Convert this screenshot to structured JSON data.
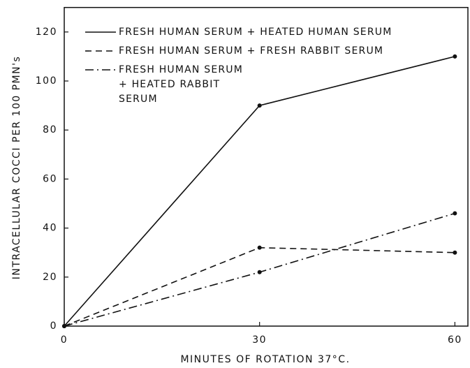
{
  "chart_data": {
    "type": "line",
    "x_label": "MINUTES OF ROTATION 37°C.",
    "y_label": "INTRACELLULAR COCCI PER 100 PMN's",
    "x": [
      0,
      30,
      60
    ],
    "series": [
      {
        "name": "FRESH HUMAN SERUM + HEATED HUMAN SERUM",
        "color": "#111111",
        "style": "solid",
        "values": [
          0,
          90,
          110
        ]
      },
      {
        "name": "FRESH HUMAN SERUM + FRESH RABBIT SERUM",
        "color": "#111111",
        "style": "dashed",
        "values": [
          0,
          32,
          30
        ]
      },
      {
        "name": "FRESH HUMAN SERUM + HEATED RABBIT SERUM",
        "color": "#111111",
        "style": "dashdot",
        "values": [
          0,
          22,
          46
        ]
      }
    ],
    "xlim": [
      0,
      62
    ],
    "xticks": [
      0,
      30,
      60
    ],
    "ylim": [
      0,
      130
    ],
    "yticks": [
      0,
      20,
      40,
      60,
      80,
      100,
      120
    ],
    "grid": false,
    "legend": "upper left"
  }
}
